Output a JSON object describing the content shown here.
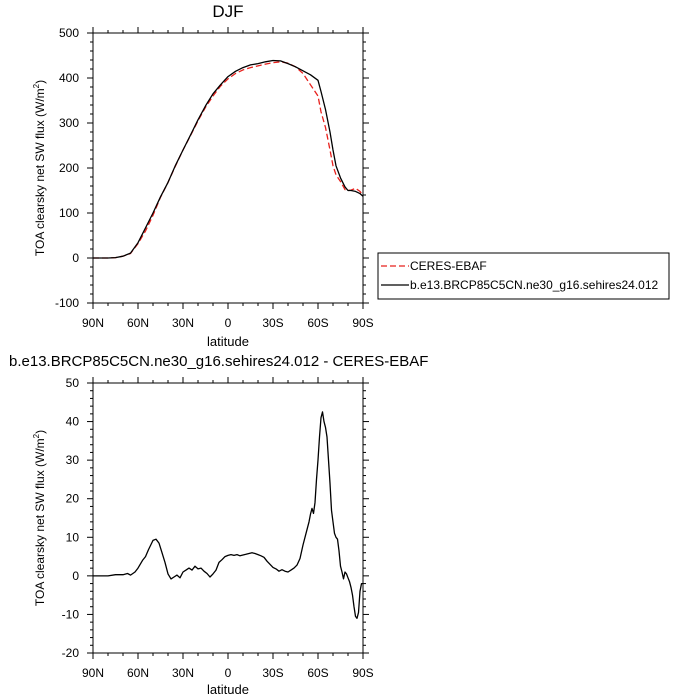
{
  "chart_data": [
    {
      "type": "line",
      "title": "DJF",
      "xlabel": "latitude",
      "ylabel": "TOA clearsky net SW flux (W/m",
      "ylabel_sup": "2",
      "ylabel_close": ")",
      "xlim": [
        90,
        -90
      ],
      "ylim": [
        -100,
        500
      ],
      "x_ticks": [
        90,
        60,
        30,
        0,
        -30,
        -60,
        -90
      ],
      "x_tick_labels": [
        "90N",
        "60N",
        "30N",
        "0",
        "30S",
        "60S",
        "90S"
      ],
      "y_ticks": [
        -100,
        0,
        100,
        200,
        300,
        400,
        500
      ],
      "y_tick_labels": [
        "-100",
        "0",
        "100",
        "200",
        "300",
        "400",
        "500"
      ],
      "legend": "outside-right",
      "series": [
        {
          "name": "CERES-EBAF",
          "color": "#e8201c",
          "dash": "dashed",
          "x": [
            90,
            80,
            75,
            70,
            65,
            60,
            55,
            50,
            45,
            40,
            35,
            30,
            25,
            20,
            15,
            10,
            5,
            0,
            -5,
            -10,
            -15,
            -20,
            -25,
            -30,
            -35,
            -40,
            -45,
            -50,
            -55,
            -60,
            -62,
            -65,
            -68,
            -70,
            -72,
            -75,
            -78,
            -80,
            -82,
            -85,
            -88,
            -90
          ],
          "y": [
            0,
            0,
            1,
            4,
            10,
            32,
            60,
            95,
            135,
            168,
            205,
            240,
            272,
            305,
            335,
            360,
            382,
            398,
            410,
            418,
            423,
            427,
            431,
            434,
            436,
            433,
            425,
            410,
            385,
            360,
            325,
            290,
            240,
            205,
            185,
            170,
            152,
            150,
            151,
            155,
            148,
            138
          ]
        },
        {
          "name": "b.e13.BRCP85C5CN.ne30_g16.sehires24.012",
          "color": "#000000",
          "dash": "solid",
          "x": [
            90,
            80,
            75,
            70,
            65,
            60,
            55,
            50,
            45,
            40,
            35,
            30,
            25,
            20,
            15,
            10,
            5,
            0,
            -5,
            -10,
            -15,
            -20,
            -25,
            -30,
            -35,
            -40,
            -45,
            -50,
            -55,
            -60,
            -62,
            -65,
            -68,
            -70,
            -72,
            -75,
            -78,
            -80,
            -82,
            -85,
            -88,
            -90
          ],
          "y": [
            0,
            0,
            1,
            4,
            11,
            34,
            67,
            100,
            136,
            168,
            206,
            240,
            273,
            307,
            338,
            365,
            385,
            403,
            415,
            423,
            429,
            432,
            436,
            439,
            438,
            432,
            425,
            416,
            407,
            395,
            370,
            330,
            280,
            240,
            205,
            178,
            158,
            150,
            150,
            148,
            143,
            137
          ]
        }
      ]
    },
    {
      "type": "line",
      "title": "b.e13.BRCP85C5CN.ne30_g16.sehires24.012 - CERES-EBAF",
      "xlabel": "latitude",
      "ylabel": "TOA clearsky net SW flux (W/m",
      "ylabel_sup": "2",
      "ylabel_close": ")",
      "xlim": [
        90,
        -90
      ],
      "ylim": [
        -20,
        50
      ],
      "x_ticks": [
        90,
        60,
        30,
        0,
        -30,
        -60,
        -90
      ],
      "x_tick_labels": [
        "90N",
        "60N",
        "30N",
        "0",
        "30S",
        "60S",
        "90S"
      ],
      "y_ticks": [
        -20,
        -10,
        0,
        10,
        20,
        30,
        40,
        50
      ],
      "y_tick_labels": [
        "-20",
        "-10",
        "0",
        "10",
        "20",
        "30",
        "40",
        "50"
      ],
      "series": [
        {
          "color": "#000000",
          "dash": "solid",
          "x": [
            90,
            80,
            75,
            70,
            67,
            65,
            62,
            60,
            57,
            55,
            53,
            50,
            48,
            46,
            44,
            42,
            40,
            38,
            36,
            34,
            32,
            30,
            28,
            26,
            24,
            22,
            20,
            18,
            16,
            14,
            12,
            10,
            8,
            6,
            4,
            2,
            0,
            -2,
            -4,
            -6,
            -8,
            -10,
            -12,
            -14,
            -16,
            -18,
            -20,
            -22,
            -24,
            -26,
            -28,
            -30,
            -32,
            -34,
            -36,
            -38,
            -40,
            -42,
            -44,
            -46,
            -48,
            -50,
            -52,
            -54,
            -55,
            -56,
            -57,
            -58,
            -59,
            -60,
            -61,
            -62,
            -63,
            -64,
            -65,
            -66,
            -67,
            -68,
            -69,
            -70,
            -71,
            -72,
            -73,
            -74,
            -75,
            -76,
            -77,
            -78,
            -79,
            -80,
            -81,
            -82,
            -83,
            -84,
            -85,
            -86,
            -87,
            -88,
            -89,
            -90
          ],
          "y": [
            0,
            0,
            0.3,
            0.3,
            0.6,
            0.2,
            1.0,
            2.0,
            4.0,
            5.0,
            6.8,
            9.2,
            9.5,
            8.5,
            6.0,
            3.5,
            0.5,
            -0.8,
            -0.3,
            0.2,
            -0.5,
            1.0,
            1.5,
            2.0,
            1.5,
            2.5,
            1.8,
            2.0,
            1.2,
            0.6,
            -0.3,
            0.5,
            1.5,
            3.5,
            4.2,
            5.0,
            5.3,
            5.5,
            5.3,
            5.5,
            5.2,
            5.4,
            5.6,
            5.8,
            6.0,
            5.8,
            5.5,
            5.2,
            4.8,
            3.8,
            3.0,
            2.2,
            1.8,
            1.2,
            1.6,
            1.2,
            1.0,
            1.5,
            2.0,
            2.8,
            4.5,
            8.0,
            11.0,
            14.0,
            16.0,
            17.5,
            16.2,
            19.0,
            25.0,
            30.0,
            36.0,
            41.0,
            42.5,
            40.0,
            38.5,
            36.0,
            30.0,
            24.0,
            17.0,
            14.0,
            11.0,
            10.0,
            9.5,
            6.5,
            2.5,
            1.0,
            -0.8,
            1.0,
            0.5,
            -0.5,
            -1.5,
            -3.0,
            -5.0,
            -8.0,
            -10.5,
            -11.0,
            -9.5,
            -4.0,
            -2.0,
            -2.0
          ]
        }
      ]
    }
  ]
}
